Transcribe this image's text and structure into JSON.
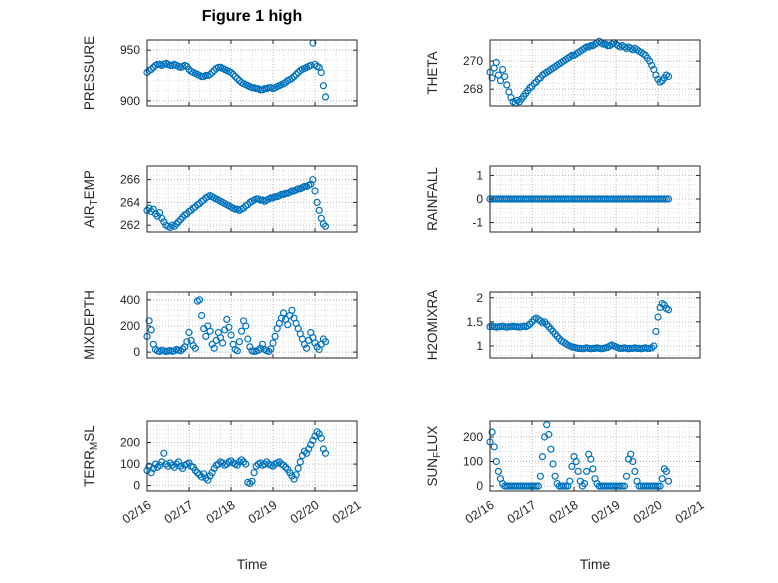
{
  "figure": {
    "title": "Figure 1 high"
  },
  "xaxis": {
    "label": "Time",
    "tick_labels": [
      "02/16",
      "02/17",
      "02/18",
      "02/19",
      "02/20",
      "02/21"
    ],
    "tick_values": [
      0,
      1,
      2,
      3,
      4,
      5
    ],
    "lim": [
      0,
      5
    ]
  },
  "style": {
    "marker_color": "#0072BD",
    "axis_color": "#262626",
    "grid_color": "#b5b5b5",
    "minor_grid_color": "#dcdcdc"
  },
  "chart_data": [
    {
      "id": "pressure",
      "type": "scatter",
      "ylabel": "PRESSURE",
      "yticks": [
        900,
        950
      ],
      "ylim": [
        895,
        960
      ],
      "x_start": 0,
      "x_step": 0.05,
      "y": [
        928,
        930,
        931,
        933,
        935,
        936,
        936,
        935,
        936,
        937,
        936,
        935,
        935,
        936,
        935,
        934,
        933,
        934,
        935,
        934,
        931,
        929,
        928,
        927,
        926,
        925,
        924,
        924,
        925,
        925,
        926,
        928,
        930,
        932,
        933,
        933,
        932,
        931,
        930,
        929,
        928,
        926,
        924,
        922,
        920,
        918,
        917,
        916,
        915,
        914,
        913,
        913,
        912,
        912,
        911,
        911,
        912,
        912,
        913,
        913,
        912,
        913,
        914,
        915,
        916,
        917,
        918,
        920,
        921,
        922,
        924,
        926,
        928,
        930,
        931,
        932,
        933,
        934,
        935,
        957,
        936,
        934,
        933,
        928,
        915,
        904
      ]
    },
    {
      "id": "theta",
      "type": "scatter",
      "ylabel": "THETA",
      "yticks": [
        268,
        270
      ],
      "ylim": [
        266.8,
        271.5
      ],
      "x_start": 0,
      "x_step": 0.05,
      "y": [
        269.2,
        268.8,
        269.5,
        269.9,
        269.0,
        268.6,
        269.4,
        268.9,
        268.3,
        267.8,
        267.4,
        267.1,
        267.0,
        267.2,
        267.1,
        267.3,
        267.5,
        267.7,
        267.9,
        268.1,
        268.2,
        268.4,
        268.5,
        268.7,
        268.8,
        269.0,
        269.1,
        269.2,
        269.3,
        269.4,
        269.5,
        269.6,
        269.7,
        269.8,
        269.9,
        270.0,
        270.1,
        270.2,
        270.3,
        270.4,
        270.4,
        270.5,
        270.6,
        270.7,
        270.8,
        270.9,
        271.0,
        271.0,
        271.1,
        271.1,
        271.2,
        271.3,
        271.4,
        271.3,
        271.2,
        271.2,
        271.1,
        271.1,
        271.2,
        271.3,
        271.2,
        271.1,
        271.0,
        271.1,
        271.0,
        270.9,
        271.0,
        270.9,
        270.8,
        270.9,
        270.8,
        270.7,
        270.6,
        270.5,
        270.4,
        270.2,
        270.0,
        269.7,
        269.4,
        269.0,
        268.7,
        268.5,
        268.6,
        268.8,
        269.0,
        268.9
      ]
    },
    {
      "id": "airtemp",
      "type": "scatter",
      "ylabel": "AIR_TEMP",
      "yticks": [
        262,
        264,
        266
      ],
      "ylim": [
        261.4,
        267.2
      ],
      "x_start": 0,
      "x_step": 0.05,
      "y": [
        263.3,
        263.5,
        263.2,
        263.4,
        263.0,
        262.8,
        263.1,
        262.6,
        262.3,
        262.0,
        261.9,
        261.8,
        262.0,
        261.9,
        262.1,
        262.3,
        262.5,
        262.7,
        262.9,
        263.0,
        263.2,
        263.3,
        263.5,
        263.6,
        263.8,
        263.9,
        264.1,
        264.2,
        264.4,
        264.5,
        264.6,
        264.5,
        264.4,
        264.3,
        264.2,
        264.1,
        264.0,
        263.9,
        263.8,
        263.7,
        263.6,
        263.5,
        263.4,
        263.4,
        263.3,
        263.4,
        263.5,
        263.7,
        263.8,
        264.0,
        264.1,
        264.2,
        264.3,
        264.3,
        264.2,
        264.2,
        264.1,
        264.2,
        264.3,
        264.4,
        264.4,
        264.5,
        264.5,
        264.6,
        264.7,
        264.7,
        264.8,
        264.8,
        264.9,
        265.0,
        265.0,
        265.1,
        265.2,
        265.2,
        265.3,
        265.4,
        265.4,
        265.5,
        265.6,
        266.0,
        265.0,
        264.0,
        263.3,
        262.6,
        262.1,
        261.9
      ]
    },
    {
      "id": "rainfall",
      "type": "scatter",
      "ylabel": "RAINFALL",
      "yticks": [
        -1,
        0,
        1
      ],
      "ylim": [
        -1.4,
        1.4
      ],
      "x_start": 0,
      "x_step": 0.05,
      "y": [
        0,
        0,
        0,
        0,
        0,
        0,
        0,
        0,
        0,
        0,
        0,
        0,
        0,
        0,
        0,
        0,
        0,
        0,
        0,
        0,
        0,
        0,
        0,
        0,
        0,
        0,
        0,
        0,
        0,
        0,
        0,
        0,
        0,
        0,
        0,
        0,
        0,
        0,
        0,
        0,
        0,
        0,
        0,
        0,
        0,
        0,
        0,
        0,
        0,
        0,
        0,
        0,
        0,
        0,
        0,
        0,
        0,
        0,
        0,
        0,
        0,
        0,
        0,
        0,
        0,
        0,
        0,
        0,
        0,
        0,
        0,
        0,
        0,
        0,
        0,
        0,
        0,
        0,
        0,
        0,
        0,
        0,
        0,
        0,
        0,
        0
      ]
    },
    {
      "id": "mixdepth",
      "type": "scatter",
      "ylabel": "MIXDEPTH",
      "yticks": [
        0,
        200,
        400
      ],
      "ylim": [
        -45,
        460
      ],
      "x_start": 0,
      "x_step": 0.05,
      "y": [
        120,
        240,
        170,
        60,
        20,
        10,
        5,
        15,
        10,
        5,
        8,
        12,
        6,
        10,
        20,
        15,
        10,
        25,
        40,
        80,
        150,
        90,
        50,
        30,
        390,
        400,
        280,
        180,
        120,
        200,
        160,
        60,
        30,
        90,
        150,
        110,
        70,
        170,
        250,
        190,
        130,
        60,
        20,
        10,
        80,
        160,
        240,
        200,
        100,
        40,
        10,
        5,
        8,
        15,
        30,
        60,
        20,
        10,
        5,
        25,
        70,
        120,
        180,
        220,
        260,
        300,
        250,
        210,
        280,
        320,
        260,
        220,
        180,
        140,
        100,
        60,
        30,
        90,
        150,
        110,
        70,
        40,
        20,
        60,
        100,
        80
      ]
    },
    {
      "id": "h2omixra",
      "type": "scatter",
      "ylabel": "H2OMIXRA",
      "yticks": [
        1,
        1.5,
        2
      ],
      "ylim": [
        0.75,
        2.12
      ],
      "x_start": 0,
      "x_step": 0.05,
      "y": [
        1.4,
        1.41,
        1.4,
        1.39,
        1.4,
        1.4,
        1.41,
        1.4,
        1.39,
        1.4,
        1.4,
        1.41,
        1.4,
        1.4,
        1.39,
        1.4,
        1.41,
        1.4,
        1.42,
        1.45,
        1.5,
        1.55,
        1.58,
        1.55,
        1.52,
        1.48,
        1.5,
        1.45,
        1.4,
        1.35,
        1.3,
        1.25,
        1.2,
        1.15,
        1.1,
        1.08,
        1.05,
        1.02,
        1.0,
        0.98,
        0.97,
        0.96,
        0.95,
        0.95,
        0.94,
        0.95,
        0.96,
        0.95,
        0.94,
        0.95,
        0.95,
        0.96,
        0.95,
        0.94,
        0.95,
        0.96,
        0.97,
        1.0,
        1.02,
        1.0,
        0.98,
        0.96,
        0.95,
        0.95,
        0.96,
        0.95,
        0.94,
        0.95,
        0.95,
        0.96,
        0.95,
        0.95,
        0.94,
        0.95,
        0.96,
        0.95,
        0.95,
        0.96,
        1.0,
        1.3,
        1.6,
        1.8,
        1.88,
        1.85,
        1.78,
        1.75
      ]
    },
    {
      "id": "terrmsl",
      "type": "scatter",
      "ylabel": "TERR_MSL",
      "yticks": [
        0,
        100,
        200
      ],
      "ylim": [
        -25,
        300
      ],
      "x_start": 0,
      "x_step": 0.05,
      "y": [
        70,
        90,
        60,
        80,
        100,
        85,
        95,
        110,
        150,
        100,
        90,
        105,
        95,
        85,
        100,
        110,
        90,
        80,
        95,
        100,
        105,
        90,
        85,
        70,
        60,
        50,
        40,
        55,
        35,
        25,
        45,
        60,
        80,
        95,
        100,
        110,
        105,
        95,
        100,
        110,
        115,
        105,
        100,
        95,
        110,
        120,
        110,
        100,
        15,
        10,
        20,
        60,
        90,
        100,
        105,
        95,
        100,
        110,
        100,
        95,
        90,
        100,
        105,
        110,
        100,
        95,
        85,
        75,
        60,
        45,
        30,
        50,
        80,
        110,
        140,
        160,
        150,
        170,
        190,
        210,
        230,
        250,
        240,
        220,
        170,
        150
      ]
    },
    {
      "id": "sunflux",
      "type": "scatter",
      "ylabel": "SUN_FLUX",
      "yticks": [
        0,
        100,
        200
      ],
      "ylim": [
        -20,
        265
      ],
      "x_start": 0,
      "x_step": 0.05,
      "y": [
        180,
        220,
        160,
        100,
        60,
        30,
        10,
        0,
        0,
        0,
        0,
        0,
        0,
        0,
        0,
        0,
        0,
        0,
        0,
        0,
        0,
        0,
        0,
        0,
        40,
        120,
        200,
        250,
        210,
        150,
        90,
        40,
        10,
        0,
        0,
        0,
        0,
        0,
        20,
        80,
        120,
        100,
        60,
        20,
        0,
        10,
        60,
        130,
        110,
        70,
        30,
        10,
        0,
        0,
        0,
        0,
        0,
        0,
        0,
        0,
        0,
        0,
        0,
        0,
        0,
        40,
        110,
        130,
        100,
        60,
        20,
        0,
        0,
        0,
        0,
        0,
        0,
        0,
        0,
        0,
        0,
        0,
        30,
        70,
        60,
        20
      ]
    }
  ]
}
